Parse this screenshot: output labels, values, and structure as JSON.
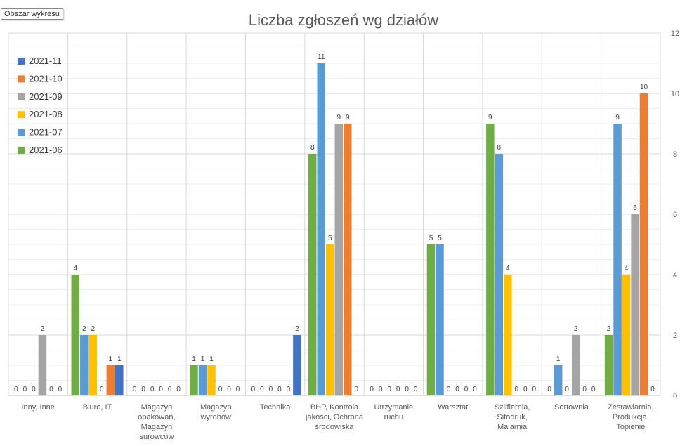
{
  "chart_area_label": "Obszar wykresu",
  "chart_data": {
    "type": "bar",
    "title": "Liczba zgłoszeń wg działów",
    "xlabel": "",
    "ylabel": "",
    "ylim": [
      0,
      12
    ],
    "yticks": [
      0,
      2,
      4,
      6,
      8,
      10,
      12
    ],
    "y_axis_side": "right",
    "grid": true,
    "legend_position": "left",
    "categories": [
      [
        "Inny, Inne"
      ],
      [
        "Biuro, IT"
      ],
      [
        "Magazyn",
        "opakowań,",
        "Magazyn",
        "surowców"
      ],
      [
        "Magazyn",
        "wyrobów"
      ],
      [
        "Technika"
      ],
      [
        "BHP, Kontrola",
        "jakości, Ochrona",
        "środowiska"
      ],
      [
        "Utrzymanie",
        "ruchu"
      ],
      [
        "Warsztat"
      ],
      [
        "Szlifiernia,",
        "Sitodruk,",
        "Malarnia"
      ],
      [
        "Sortownia"
      ],
      [
        "Zestawiarnia,",
        "Produkcja,",
        "Topienie"
      ]
    ],
    "series": [
      {
        "name": "2021-06",
        "color": "#70AD47",
        "values": [
          0,
          4,
          0,
          1,
          0,
          8,
          0,
          5,
          9,
          0,
          2
        ]
      },
      {
        "name": "2021-07",
        "color": "#5B9BD5",
        "values": [
          0,
          2,
          0,
          1,
          0,
          11,
          0,
          5,
          8,
          1,
          9
        ]
      },
      {
        "name": "2021-08",
        "color": "#FFC000",
        "values": [
          0,
          2,
          0,
          1,
          0,
          5,
          0,
          0,
          4,
          0,
          4
        ]
      },
      {
        "name": "2021-09",
        "color": "#A5A5A5",
        "values": [
          2,
          0,
          0,
          0,
          0,
          9,
          0,
          0,
          0,
          2,
          6
        ]
      },
      {
        "name": "2021-10",
        "color": "#ED7D31",
        "values": [
          0,
          1,
          0,
          0,
          0,
          9,
          0,
          0,
          0,
          0,
          10
        ]
      },
      {
        "name": "2021-11",
        "color": "#4472C4",
        "values": [
          0,
          1,
          0,
          0,
          2,
          0,
          0,
          0,
          0,
          0,
          0
        ]
      }
    ],
    "legend_order": [
      "2021-11",
      "2021-10",
      "2021-09",
      "2021-08",
      "2021-07",
      "2021-06"
    ]
  }
}
